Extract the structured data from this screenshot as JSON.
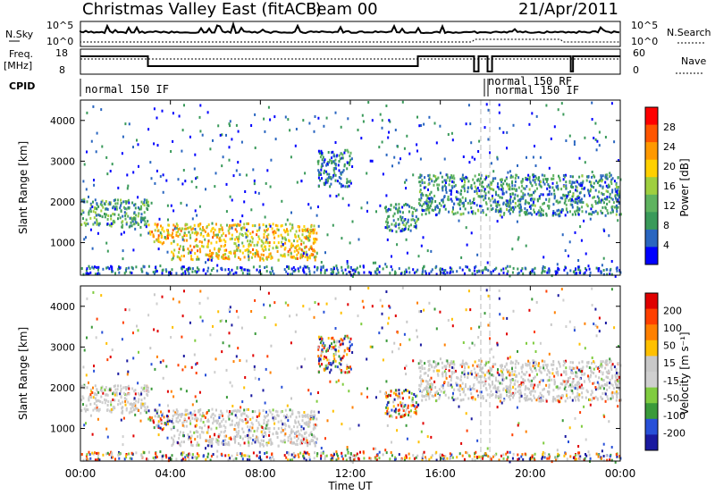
{
  "header": {
    "station": "Christmas Valley East (fitACF)",
    "beam": "Beam 00",
    "date": "21/Apr/2011"
  },
  "strip_labels": {
    "nsky": "N.Sky",
    "freq": "Freq.",
    "freq_unit": "[MHz]",
    "cpid": "CPID",
    "nsearch": "N.Search",
    "nave": "Nave"
  },
  "strip_ticks": {
    "noise_left": [
      "10^5",
      "10^0"
    ],
    "noise_right": [
      "10^5",
      "10^0"
    ],
    "freq_left": [
      "18",
      "8"
    ],
    "nave_right": [
      "60",
      "0"
    ]
  },
  "cpid_labels": [
    "normal 150 IF",
    "normal 150 RF",
    "normal 150 IF"
  ],
  "colors": {
    "power_scale": [
      "#0000ff",
      "#2a66c0",
      "#3a9a5a",
      "#5fb35f",
      "#9fcf3f",
      "#ffd000",
      "#ff9900",
      "#ff5500",
      "#ff0000"
    ],
    "velocity_scale": [
      "#1a1aa0",
      "#2850d8",
      "#3a9a3a",
      "#80cc40",
      "#cfcfcf",
      "#c8c8c8",
      "#ffc000",
      "#ff8000",
      "#ff4000",
      "#e00000"
    ]
  },
  "chart_data": [
    {
      "type": "heatmap",
      "name": "power",
      "xlabel": "",
      "ylabel": "Slant Range [km]",
      "xlim": [
        "00:00",
        "00:00"
      ],
      "ylim": [
        200,
        4500
      ],
      "yticks": [
        "1000",
        "2000",
        "3000",
        "4000"
      ],
      "colorbar_label": "Power [dB]",
      "colorbar_ticks": [
        "28",
        "24",
        "20",
        "16",
        "12",
        "8",
        "4"
      ],
      "regions": [
        {
          "t": [
            0.0,
            3.0
          ],
          "r": [
            1400,
            2100
          ],
          "level": 10
        },
        {
          "t": [
            3.0,
            4.0
          ],
          "r": [
            1000,
            1500
          ],
          "level": 22
        },
        {
          "t": [
            4.0,
            10.5
          ],
          "r": [
            600,
            1500
          ],
          "level": 20
        },
        {
          "t": [
            10.5,
            12.0
          ],
          "r": [
            2400,
            3300
          ],
          "level": 6
        },
        {
          "t": [
            13.5,
            15.0
          ],
          "r": [
            1300,
            2000
          ],
          "level": 8
        },
        {
          "t": [
            15.0,
            24.0
          ],
          "r": [
            1700,
            2700
          ],
          "level": 8
        }
      ]
    },
    {
      "type": "heatmap",
      "name": "velocity",
      "xlabel": "Time UT",
      "ylabel": "Slant Range [km]",
      "xlim": [
        "00:00",
        "00:00"
      ],
      "ylim": [
        200,
        4500
      ],
      "yticks": [
        "1000",
        "2000",
        "3000",
        "4000"
      ],
      "xticks": [
        "00:00",
        "04:00",
        "08:00",
        "12:00",
        "16:00",
        "20:00",
        "00:00"
      ],
      "colorbar_label": "Velocity [m s⁻¹]",
      "colorbar_ticks": [
        "200",
        "100",
        "50",
        "15",
        "-15",
        "-50",
        "-100",
        "-200"
      ]
    }
  ]
}
